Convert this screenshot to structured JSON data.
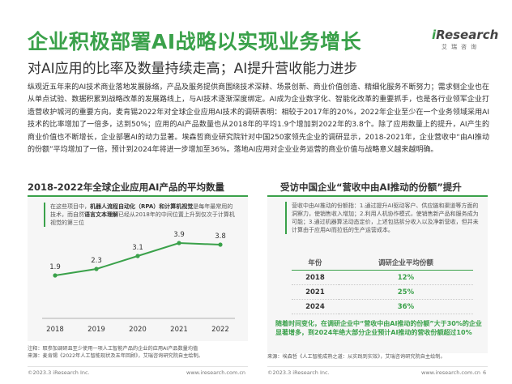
{
  "header": {
    "title": "企业积极部署AI战略以实现业务增长",
    "subtitle": "对AI应用的比率及数量持续走高；AI提升营收能力进步"
  },
  "logo": {
    "i": "i",
    "word": "Research",
    "cn": "艾瑞咨询"
  },
  "body_text": "纵观近五年来的AI技术商业落地发展脉络，产品及服务提供商围绕技术深耕、场景创新、商业价值创造、精细化服务不断努力；需求侧企业也在从单点试验、数据积累到战略改革的发展路线上，与AI技术逐渐深度绑定。AI成为企业数字化、智能化改革的重要抓手，也是各行业领军企业打造营收护城河的重要方向。麦肯锡2022年对全球企业应用AI技术的调研表明：相较于2017年的20%，2022年企业至少在一个业务领域采用AI技术的比率增加了一倍多，达到50%；应用的AI产品数量也从2018年的平均1.9个增加到2022年的3.8个。除了应用数量上的提升，AI产生的商业价值也不断增长，企业部署AI的动力显著。埃森哲商业研究院针对中国250家领先企业的调研显示，2018-2021年，企业营收中“由AI推动的份额”平均增加了一倍，预计到2024年将进一步增加至36%。落地AI应用对企业业务运营的商业价值与战略意义越来越明确。",
  "left_panel": {
    "title": "2018-2022年全球企业应用AI产品的平均数量",
    "note_bold": "机器人流程自动化（RPA）和计算机视觉",
    "note_prefix": "在这些项目中，",
    "note_mid": "是每年最常用的技术，而自然",
    "note_bold2": "语言文本理解",
    "note_suffix": "已经从2018年的中间位置上升到仅次于计算机视觉的第三位",
    "footnote": "注释：取参加调研且至少使用一项人工智能产品的企业的应用AI产品数量均值\n来源：麦肯锡《2022年人工智能现状及五年回顾》，艾瑞咨询研究院自主绘制。"
  },
  "chart_data": {
    "type": "line",
    "categories": [
      "2018",
      "2019",
      "2020",
      "2021",
      "2022"
    ],
    "values": [
      1.9,
      2.3,
      3.1,
      3.9,
      3.8
    ],
    "title": "2018-2022年全球企业应用AI产品的平均数量",
    "ylim": [
      0,
      4.5
    ],
    "color": "#3aa14a"
  },
  "right_panel": {
    "title": "受访中国企业“营收中由AI推动的份额”提升",
    "note": "营收中由AI推动的份额指：1.通过提升AI驱动客户、供应链和渠道等方面的洞察力，使销售收入增加；2.利用人机协作模式，使销售新产品和服务成为可能；3.通过机器算法动态定价，上述包括拆分收入以及净新营收，但并未计算由于应用AI而拉低的生产运营成本。",
    "table": {
      "headers": [
        "年份",
        "调研企业平均份额"
      ],
      "rows": [
        {
          "year": "2018",
          "value": "12%"
        },
        {
          "year": "2021",
          "value": "25%"
        },
        {
          "year": "2024",
          "value": "36%"
        }
      ]
    },
    "conclusion": "随着时间变化，在调研企业中“营收中由AI推动的份额”大于30%的企业显著增多，到2024年绝大部分企业预计AI推动的营收份额超过10%",
    "footnote": "来源：埃森哲《人工智能成熟之道：从实践到实效》，艾瑞咨询研究院自主绘制。"
  },
  "footer": {
    "left_copyright": "©2023.3 iResearch Inc.",
    "left_url": "www.iresearch.com.cn",
    "right_copyright": "©2023.3 iResearch Inc.",
    "right_url": "www.iresearch.com.cn",
    "page": "6"
  }
}
